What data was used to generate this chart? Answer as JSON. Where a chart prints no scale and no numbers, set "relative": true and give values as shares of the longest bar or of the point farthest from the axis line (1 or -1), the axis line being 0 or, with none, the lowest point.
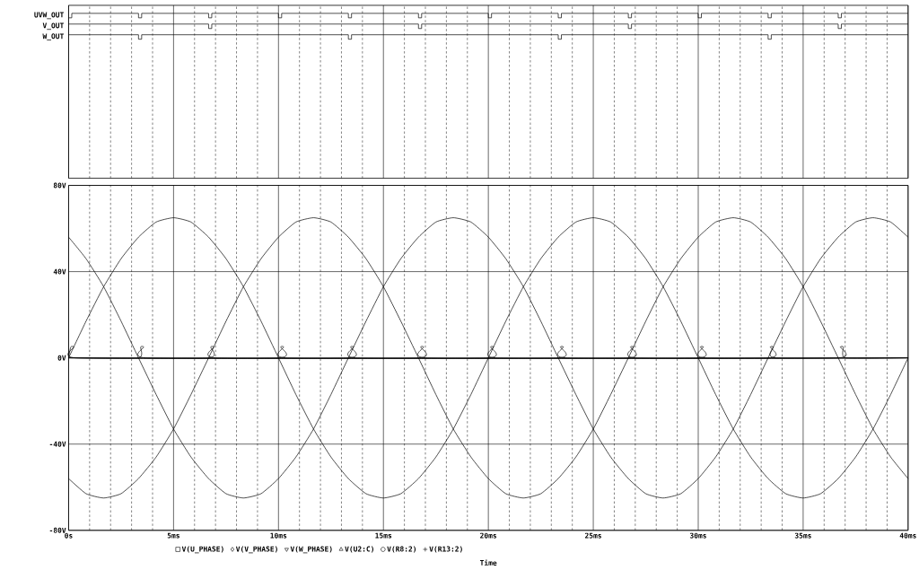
{
  "chart_data": [
    {
      "type": "step",
      "relative": true,
      "grid": "x",
      "tick_labels": false,
      "xlim": [
        0,
        40
      ],
      "xticks": [
        0,
        {
          "value": 1,
          "label": null
        },
        {
          "value": 2,
          "label": null
        },
        {
          "value": 3,
          "label": null
        },
        {
          "value": 4,
          "label": null
        },
        5,
        {
          "value": 6,
          "label": null
        },
        {
          "value": 7,
          "label": null
        },
        {
          "value": 8,
          "label": null
        },
        {
          "value": 9,
          "label": null
        },
        10,
        {
          "value": 11,
          "label": null
        },
        {
          "value": 12,
          "label": null
        },
        {
          "value": 13,
          "label": null
        },
        {
          "value": 14,
          "label": null
        },
        15,
        {
          "value": 16,
          "label": null
        },
        {
          "value": 17,
          "label": null
        },
        {
          "value": 18,
          "label": null
        },
        {
          "value": 19,
          "label": null
        },
        20,
        {
          "value": 21,
          "label": null
        },
        {
          "value": 22,
          "label": null
        },
        {
          "value": 23,
          "label": null
        },
        {
          "value": 24,
          "label": null
        },
        25,
        {
          "value": 26,
          "label": null
        },
        {
          "value": 27,
          "label": null
        },
        {
          "value": 28,
          "label": null
        },
        {
          "value": 29,
          "label": null
        },
        30,
        {
          "value": 31,
          "label": null
        },
        {
          "value": 32,
          "label": null
        },
        {
          "value": 33,
          "label": null
        },
        {
          "value": 34,
          "label": null
        },
        35,
        {
          "value": 36,
          "label": null
        },
        {
          "value": 37,
          "label": null
        },
        {
          "value": 38,
          "label": null
        },
        {
          "value": 39,
          "label": null
        },
        40
      ],
      "series": [
        {
          "name": "UVW_OUT",
          "color": "#000000",
          "x": [
            0,
            0.15,
            3.33,
            3.48,
            6.67,
            6.82,
            10,
            10.15,
            13.33,
            13.48,
            16.67,
            16.82,
            20,
            20.15,
            23.33,
            23.48,
            26.67,
            26.82,
            30,
            30.15,
            33.33,
            33.48,
            36.67,
            36.82,
            40
          ],
          "values": [
            0,
            1,
            0,
            1,
            0,
            1,
            0,
            1,
            0,
            1,
            0,
            1,
            0,
            1,
            0,
            1,
            0,
            1,
            0,
            1,
            0,
            1,
            0,
            1,
            1
          ]
        }
      ]
    },
    {
      "type": "step",
      "relative": true,
      "tick_labels": false,
      "xlim": [
        0,
        40
      ],
      "series": [
        {
          "name": "V_OUT",
          "color": "#000000",
          "x": [
            0,
            6.67,
            6.82,
            16.67,
            16.82,
            26.67,
            26.82,
            36.67,
            36.82,
            40
          ],
          "values": [
            1,
            0,
            1,
            0,
            1,
            0,
            1,
            0,
            1,
            1
          ]
        }
      ]
    },
    {
      "type": "step",
      "relative": true,
      "tick_labels": false,
      "xlim": [
        0,
        40
      ],
      "series": [
        {
          "name": "W_OUT",
          "color": "#000000",
          "x": [
            0,
            3.33,
            3.48,
            13.33,
            13.48,
            23.33,
            23.48,
            33.33,
            33.48,
            40
          ],
          "values": [
            1,
            0,
            1,
            0,
            1,
            0,
            1,
            0,
            1,
            1
          ]
        }
      ]
    },
    {
      "type": "line",
      "xlabel": "Time",
      "grid": true,
      "legend": "bottom",
      "xlim": [
        0,
        40
      ],
      "ylim": [
        -80,
        80
      ],
      "yticks": [
        {
          "value": -80,
          "label": "-80V"
        },
        {
          "value": -40,
          "label": "-40V"
        },
        {
          "value": 0,
          "label": "0V"
        },
        {
          "value": 40,
          "label": "40V"
        },
        {
          "value": 80,
          "label": "80V"
        }
      ],
      "xticks": [
        {
          "value": 0,
          "label": "0s"
        },
        {
          "value": 1,
          "label": null
        },
        {
          "value": 2,
          "label": null
        },
        {
          "value": 3,
          "label": null
        },
        {
          "value": 4,
          "label": null
        },
        {
          "value": 5,
          "label": "5ms"
        },
        {
          "value": 6,
          "label": null
        },
        {
          "value": 7,
          "label": null
        },
        {
          "value": 8,
          "label": null
        },
        {
          "value": 9,
          "label": null
        },
        {
          "value": 10,
          "label": "10ms"
        },
        {
          "value": 11,
          "label": null
        },
        {
          "value": 12,
          "label": null
        },
        {
          "value": 13,
          "label": null
        },
        {
          "value": 14,
          "label": null
        },
        {
          "value": 15,
          "label": "15ms"
        },
        {
          "value": 16,
          "label": null
        },
        {
          "value": 17,
          "label": null
        },
        {
          "value": 18,
          "label": null
        },
        {
          "value": 19,
          "label": null
        },
        {
          "value": 20,
          "label": "20ms"
        },
        {
          "value": 21,
          "label": null
        },
        {
          "value": 22,
          "label": null
        },
        {
          "value": 23,
          "label": null
        },
        {
          "value": 24,
          "label": null
        },
        {
          "value": 25,
          "label": "25ms"
        },
        {
          "value": 26,
          "label": null
        },
        {
          "value": 27,
          "label": null
        },
        {
          "value": 28,
          "label": null
        },
        {
          "value": 29,
          "label": null
        },
        {
          "value": 30,
          "label": "30ms"
        },
        {
          "value": 31,
          "label": null
        },
        {
          "value": 32,
          "label": null
        },
        {
          "value": 33,
          "label": null
        },
        {
          "value": 34,
          "label": null
        },
        {
          "value": 35,
          "label": "35ms"
        },
        {
          "value": 36,
          "label": null
        },
        {
          "value": 37,
          "label": null
        },
        {
          "value": 38,
          "label": null
        },
        {
          "value": 39,
          "label": null
        },
        {
          "value": 40,
          "label": "40ms"
        }
      ],
      "x": [
        0,
        0.83,
        1.67,
        2.5,
        3.33,
        4.17,
        5,
        5.83,
        6.67,
        7.5,
        8.33,
        9.17,
        10,
        10.83,
        11.67,
        12.5,
        13.33,
        14.17,
        15,
        15.83,
        16.67,
        17.5,
        18.33,
        19.17,
        20,
        20.83,
        21.67,
        22.5,
        23.33,
        24.17,
        25,
        25.83,
        26.67,
        27.5,
        28.33,
        29.17,
        30,
        30.83,
        31.67,
        32.5,
        33.33,
        34.17,
        35,
        35.83,
        36.67,
        37.5,
        38.33,
        39.17,
        40
      ],
      "series": [
        {
          "name": "V(U_PHASE)",
          "color": "#000000",
          "values": [
            0,
            17,
            33,
            46,
            56,
            63,
            65,
            63,
            56,
            46,
            33,
            17,
            0,
            -17,
            -33,
            -46,
            -56,
            -63,
            -65,
            -63,
            -56,
            -46,
            -33,
            -17,
            0,
            17,
            33,
            46,
            56,
            63,
            65,
            63,
            56,
            46,
            33,
            17,
            0,
            -17,
            -33,
            -46,
            -56,
            -63,
            -65,
            -63,
            -56,
            -46,
            -33,
            -17,
            0
          ]
        },
        {
          "name": "V(V_PHASE)",
          "color": "#000000",
          "values": [
            -56,
            -63,
            -65,
            -63,
            -56,
            -46,
            -33,
            -17,
            0,
            17,
            33,
            46,
            56,
            63,
            65,
            63,
            56,
            46,
            33,
            17,
            0,
            -17,
            -33,
            -46,
            -56,
            -63,
            -65,
            -63,
            -56,
            -46,
            -33,
            -17,
            0,
            17,
            33,
            46,
            56,
            63,
            65,
            63,
            56,
            46,
            33,
            17,
            0,
            -17,
            -33,
            -46,
            -56
          ]
        },
        {
          "name": "V(W_PHASE)",
          "color": "#000000",
          "values": [
            56,
            46,
            33,
            17,
            0,
            -17,
            -33,
            -46,
            -56,
            -63,
            -65,
            -63,
            -56,
            -46,
            -33,
            -17,
            0,
            17,
            33,
            46,
            56,
            63,
            65,
            63,
            56,
            46,
            33,
            17,
            0,
            -17,
            -33,
            -46,
            -56,
            -63,
            -65,
            -63,
            -56,
            -46,
            -33,
            -17,
            0,
            17,
            33,
            46,
            56,
            63,
            65,
            63,
            56
          ]
        },
        {
          "name": "V(U2:C)",
          "color": "#000000",
          "x": [
            0,
            0.1,
            0.25,
            0.35,
            10,
            10.1,
            10.25,
            10.35,
            20,
            20.1,
            20.25,
            20.35,
            30,
            30.1,
            30.25,
            30.35,
            40
          ],
          "values": [
            0,
            5,
            5,
            0,
            0,
            5,
            5,
            0,
            0,
            5,
            5,
            0,
            0,
            5,
            5,
            0,
            0
          ]
        },
        {
          "name": "V(R8:2)",
          "color": "#000000",
          "x": [
            0,
            3.33,
            3.43,
            3.58,
            3.68,
            13.33,
            13.43,
            13.58,
            13.68,
            23.33,
            23.43,
            23.58,
            23.68,
            33.33,
            33.43,
            33.58,
            33.68,
            40
          ],
          "values": [
            0,
            0,
            5,
            5,
            0,
            0,
            5,
            5,
            0,
            0,
            5,
            5,
            0,
            0,
            5,
            5,
            0,
            0
          ]
        },
        {
          "name": "V(R13:2)",
          "color": "#000000",
          "x": [
            0,
            6.67,
            6.77,
            6.92,
            7.02,
            16.67,
            16.77,
            16.92,
            17.02,
            26.67,
            26.77,
            26.92,
            27.02,
            36.67,
            36.77,
            36.92,
            37.02,
            40
          ],
          "values": [
            0,
            0,
            5,
            5,
            0,
            0,
            5,
            5,
            0,
            0,
            5,
            5,
            0,
            0,
            5,
            5,
            0,
            0
          ]
        }
      ]
    }
  ]
}
